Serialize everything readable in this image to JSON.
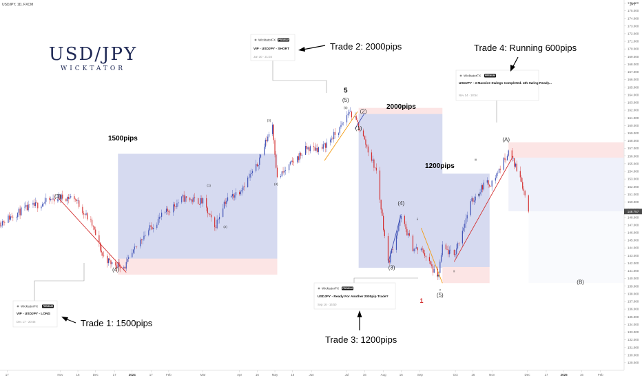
{
  "header": {
    "symbol": "USDJPY, 1D, FXCM",
    "currency": "JPY"
  },
  "logo": {
    "title": "USD/JPY",
    "subtitle": "WICKTATOR"
  },
  "trades": [
    {
      "label": "Trade 1: 1500pips"
    },
    {
      "label": "Trade 2: 2000pips"
    },
    {
      "label": "Trade 3: 1200pips"
    },
    {
      "label": "Trade 4: Running 600pips"
    }
  ],
  "cards": [
    {
      "brand": "WicktatorFX",
      "badge": "PREMIUM",
      "title": "VIP - USDJPY - LONG",
      "date": "Dec 17 · 20:46"
    },
    {
      "brand": "WicktatorFX",
      "badge": "PREMIUM",
      "title": "VIP - USDJPY - SHORT",
      "date": "Jun 30 · 21:03"
    },
    {
      "brand": "WicktatorFX",
      "badge": "PREMIUM",
      "title": "USDJPY - Ready For Another 2000pip Trade?",
      "date": "Sep 16 · 16:50"
    },
    {
      "brand": "WicktatorFX",
      "badge": "PREMIUM",
      "title": "USDJPY - 3 Massive Swings Completed. 4th Swing Ready...",
      "date": "Nov 14 · 18:54"
    }
  ],
  "box_labels": [
    "1500pips",
    "2000pips",
    "1200pips"
  ],
  "wave_labels": [
    {
      "text": "(3)",
      "x": "2023-10-30",
      "y": 150.5,
      "size": "m"
    },
    {
      "text": "(4)",
      "x": "2023-12-18",
      "y": 140.9,
      "size": "m"
    },
    {
      "text": "(3)",
      "x": "2024-04-26",
      "y": 160.5,
      "size": "s"
    },
    {
      "text": "(4)",
      "x": "2024-05-02",
      "y": 152.2,
      "size": "s"
    },
    {
      "text": "(1)",
      "x": "2024-03-06",
      "y": 152.0,
      "size": "s"
    },
    {
      "text": "(2)",
      "x": "2024-03-20",
      "y": 146.6,
      "size": "s"
    },
    {
      "text": "5",
      "x": "2024-06-30",
      "y": 164.3,
      "size": "b"
    },
    {
      "text": "(5)",
      "x": "2024-06-30",
      "y": 163.1,
      "size": "m"
    },
    {
      "text": "(5)",
      "x": "2024-06-30",
      "y": 162.2,
      "size": "s"
    },
    {
      "text": "(2)",
      "x": "2024-07-15",
      "y": 161.6,
      "size": "m"
    },
    {
      "text": "(1)",
      "x": "2024-07-11",
      "y": 159.4,
      "size": "m"
    },
    {
      "text": "(4)",
      "x": "2024-08-16",
      "y": 149.6,
      "size": "m"
    },
    {
      "text": "(3)",
      "x": "2024-08-08",
      "y": 141.2,
      "size": "m"
    },
    {
      "text": "ii",
      "x": "2024-08-30",
      "y": 147.6,
      "size": "s"
    },
    {
      "text": "iii",
      "x": "2024-09-16",
      "y": 140.2,
      "size": "s"
    },
    {
      "text": "iii",
      "x": "2024-10-18",
      "y": 155.4,
      "size": "s"
    },
    {
      "text": "iv",
      "x": "2024-10-21",
      "y": 150.8,
      "size": "s"
    },
    {
      "text": "ii",
      "x": "2024-09-30",
      "y": 140.8,
      "size": "s"
    },
    {
      "text": "v",
      "x": "2024-09-18",
      "y": 138.4,
      "size": "s"
    },
    {
      "text": "(5)",
      "x": "2024-09-18",
      "y": 137.6,
      "size": "m"
    },
    {
      "text": "(A)",
      "x": "2024-11-13",
      "y": 157.9,
      "size": "m"
    },
    {
      "text": "(B)",
      "x": "2025-01-15",
      "y": 139.3,
      "size": "m"
    }
  ],
  "wave_count_1": "1",
  "chart_data": {
    "type": "candlestick",
    "title": "USDJPY, 1D, FXCM",
    "x_range": [
      "2023-09-11",
      "2025-02-21"
    ],
    "ylim": [
      128.0,
      176.4
    ],
    "last_price": "148.757",
    "y_ticks": [
      "177.000",
      "176.000",
      "175.000",
      "174.000",
      "173.000",
      "172.000",
      "171.000",
      "170.000",
      "169.000",
      "168.000",
      "167.000",
      "166.000",
      "165.000",
      "164.000",
      "163.000",
      "162.000",
      "161.000",
      "160.000",
      "159.000",
      "158.000",
      "157.000",
      "156.000",
      "155.000",
      "154.000",
      "153.000",
      "152.000",
      "151.000",
      "150.000",
      "149.000",
      "148.000",
      "147.000",
      "146.000",
      "145.000",
      "144.000",
      "143.000",
      "142.000",
      "141.000",
      "140.000",
      "139.000",
      "138.000",
      "137.000",
      "136.000",
      "135.000",
      "134.000",
      "133.000",
      "132.000",
      "131.000",
      "130.000",
      "129.000",
      "128.000"
    ],
    "x_ticks": [
      {
        "label": "17",
        "x": "2023-09-17"
      },
      {
        "label": "Nov",
        "x": "2023-11-01"
      },
      {
        "label": "16",
        "x": "2023-11-16"
      },
      {
        "label": "Dec",
        "x": "2023-12-01"
      },
      {
        "label": "17",
        "x": "2023-12-17"
      },
      {
        "label": "2024",
        "x": "2024-01-01",
        "bold": true
      },
      {
        "label": "17",
        "x": "2024-01-17"
      },
      {
        "label": "Feb",
        "x": "2024-02-01"
      },
      {
        "label": "Mar",
        "x": "2024-03-01"
      },
      {
        "label": "Apr",
        "x": "2024-04-01"
      },
      {
        "label": "16",
        "x": "2024-04-16"
      },
      {
        "label": "May",
        "x": "2024-05-01"
      },
      {
        "label": "16",
        "x": "2024-05-16"
      },
      {
        "label": "Jun",
        "x": "2024-06-01"
      },
      {
        "label": "Jul",
        "x": "2024-07-01"
      },
      {
        "label": "16",
        "x": "2024-07-16"
      },
      {
        "label": "Aug",
        "x": "2024-08-01"
      },
      {
        "label": "16",
        "x": "2024-08-16"
      },
      {
        "label": "Sep",
        "x": "2024-09-01"
      },
      {
        "label": "Oct",
        "x": "2024-10-01"
      },
      {
        "label": "16",
        "x": "2024-10-16"
      },
      {
        "label": "Nov",
        "x": "2024-11-01"
      },
      {
        "label": "Dec",
        "x": "2024-12-01"
      },
      {
        "label": "17",
        "x": "2024-12-17"
      },
      {
        "label": "2025",
        "x": "2025-01-01",
        "bold": true
      },
      {
        "label": "16",
        "x": "2025-01-16"
      },
      {
        "label": "Feb",
        "x": "2025-02-01"
      }
    ],
    "price_path": [
      {
        "x": "2023-09-11",
        "y": 147.3
      },
      {
        "x": "2023-10-01",
        "y": 149.0
      },
      {
        "x": "2023-10-16",
        "y": 149.8
      },
      {
        "x": "2023-10-30",
        "y": 150.6
      },
      {
        "x": "2023-11-13",
        "y": 150.6
      },
      {
        "x": "2023-11-28",
        "y": 147.0
      },
      {
        "x": "2023-12-07",
        "y": 143.0
      },
      {
        "x": "2023-12-14",
        "y": 142.0
      },
      {
        "x": "2023-12-26",
        "y": 141.6
      },
      {
        "x": "2024-01-10",
        "y": 145.5
      },
      {
        "x": "2024-01-25",
        "y": 148.0
      },
      {
        "x": "2024-02-13",
        "y": 150.5
      },
      {
        "x": "2024-03-01",
        "y": 150.0
      },
      {
        "x": "2024-03-11",
        "y": 146.6
      },
      {
        "x": "2024-03-19",
        "y": 150.0
      },
      {
        "x": "2024-04-01",
        "y": 151.5
      },
      {
        "x": "2024-04-15",
        "y": 154.5
      },
      {
        "x": "2024-04-29",
        "y": 160.2
      },
      {
        "x": "2024-05-03",
        "y": 153.0
      },
      {
        "x": "2024-05-15",
        "y": 155.0
      },
      {
        "x": "2024-05-28",
        "y": 157.0
      },
      {
        "x": "2024-06-10",
        "y": 157.0
      },
      {
        "x": "2024-06-25",
        "y": 159.5
      },
      {
        "x": "2024-07-03",
        "y": 161.9
      },
      {
        "x": "2024-07-11",
        "y": 160.0
      },
      {
        "x": "2024-07-16",
        "y": 158.0
      },
      {
        "x": "2024-07-26",
        "y": 154.0
      },
      {
        "x": "2024-08-05",
        "y": 142.0
      },
      {
        "x": "2024-08-16",
        "y": 148.0
      },
      {
        "x": "2024-08-26",
        "y": 144.0
      },
      {
        "x": "2024-09-04",
        "y": 143.5
      },
      {
        "x": "2024-09-16",
        "y": 139.9
      },
      {
        "x": "2024-09-20",
        "y": 144.0
      },
      {
        "x": "2024-09-30",
        "y": 143.0
      },
      {
        "x": "2024-10-14",
        "y": 149.8
      },
      {
        "x": "2024-10-25",
        "y": 152.3
      },
      {
        "x": "2024-11-01",
        "y": 152.5
      },
      {
        "x": "2024-11-15",
        "y": 156.5
      },
      {
        "x": "2024-11-25",
        "y": 153.5
      },
      {
        "x": "2024-12-02",
        "y": 148.8
      }
    ],
    "boxes": [
      {
        "label": "1500pips",
        "x0": "2023-12-20",
        "x1": "2024-05-03",
        "y0": 142.6,
        "y1": 156.3,
        "color": "blue"
      },
      {
        "label": "",
        "x0": "2023-12-20",
        "x1": "2024-05-03",
        "y0": 140.5,
        "y1": 142.6,
        "color": "red"
      },
      {
        "label": "2000pips",
        "x0": "2024-07-11",
        "x1": "2024-09-20",
        "y0": 141.4,
        "y1": 161.5,
        "color": "blue"
      },
      {
        "label": "",
        "x0": "2024-07-11",
        "x1": "2024-09-20",
        "y0": 161.5,
        "y1": 162.3,
        "color": "red"
      },
      {
        "label": "1200pips",
        "x0": "2024-09-20",
        "x1": "2024-10-30",
        "y0": 141.5,
        "y1": 153.7,
        "color": "blue"
      },
      {
        "label": "",
        "x0": "2024-09-20",
        "x1": "2024-10-30",
        "y0": 139.4,
        "y1": 141.5,
        "color": "red"
      },
      {
        "label": "",
        "x0": "2024-11-15",
        "x1": "2025-02-21",
        "y0": 155.8,
        "y1": 157.8,
        "color": "red"
      },
      {
        "label": "",
        "x0": "2024-11-15",
        "x1": "2025-02-21",
        "y0": 148.8,
        "y1": 155.8,
        "color": "lightblue"
      },
      {
        "label": "",
        "x0": "2024-12-02",
        "x1": "2025-02-21",
        "y0": 139.4,
        "y1": 148.8,
        "color": "faint"
      }
    ],
    "trendlines": [
      {
        "x0": "2023-10-30",
        "y0": 150.6,
        "x1": "2023-12-27",
        "y1": 140.8,
        "color": "red"
      },
      {
        "x0": "2024-06-12",
        "y0": 155.4,
        "x1": "2024-07-10",
        "y1": 161.8,
        "color": "orange"
      },
      {
        "x0": "2024-07-08",
        "y0": 159.6,
        "x1": "2024-07-16",
        "y1": 161.6,
        "color": "blue"
      },
      {
        "x0": "2024-08-05",
        "y0": 142.0,
        "x1": "2024-08-16",
        "y1": 148.4,
        "color": "blue"
      },
      {
        "x0": "2024-09-02",
        "y0": 146.6,
        "x1": "2024-09-20",
        "y1": 139.4,
        "color": "orange"
      },
      {
        "x0": "2024-09-30",
        "y0": 142.2,
        "x1": "2024-11-19",
        "y1": 156.0,
        "color": "red"
      }
    ]
  }
}
